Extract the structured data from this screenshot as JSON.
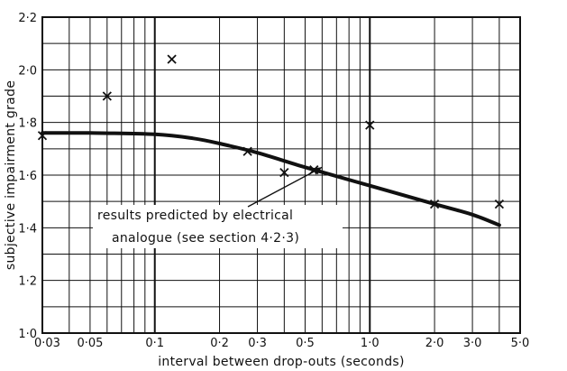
{
  "chart_data": {
    "type": "scatter",
    "xlabel": "interval between drop-outs (seconds)",
    "ylabel": "subjective impairment grade",
    "x_scale": "log",
    "xlim": [
      0.03,
      5.0
    ],
    "ylim": [
      1.0,
      2.2
    ],
    "grid": true,
    "x_ticks": [
      {
        "value": 0.03,
        "label": "0·03"
      },
      {
        "value": 0.05,
        "label": "0·05"
      },
      {
        "value": 0.1,
        "label": "0·1"
      },
      {
        "value": 0.2,
        "label": "0·2"
      },
      {
        "value": 0.3,
        "label": "0·3"
      },
      {
        "value": 0.5,
        "label": "0·5"
      },
      {
        "value": 1.0,
        "label": "1·0"
      },
      {
        "value": 2.0,
        "label": "2·0"
      },
      {
        "value": 3.0,
        "label": "3·0"
      },
      {
        "value": 5.0,
        "label": "5·0"
      }
    ],
    "y_ticks": [
      {
        "value": 1.0,
        "label": "1·0"
      },
      {
        "value": 1.2,
        "label": "1·2"
      },
      {
        "value": 1.4,
        "label": "1·4"
      },
      {
        "value": 1.6,
        "label": "1·6"
      },
      {
        "value": 1.8,
        "label": "1·8"
      },
      {
        "value": 2.0,
        "label": "2·0"
      },
      {
        "value": 2.2,
        "label": "2·2"
      }
    ],
    "measured_points": [
      {
        "x": 0.03,
        "y": 1.75
      },
      {
        "x": 0.06,
        "y": 1.9
      },
      {
        "x": 0.12,
        "y": 2.04
      },
      {
        "x": 0.27,
        "y": 1.69
      },
      {
        "x": 0.4,
        "y": 1.61
      },
      {
        "x": 0.55,
        "y": 1.62
      },
      {
        "x": 1.0,
        "y": 1.79
      },
      {
        "x": 2.0,
        "y": 1.49
      },
      {
        "x": 4.0,
        "y": 1.49
      }
    ],
    "predicted_curve": [
      {
        "x": 0.03,
        "y": 1.76
      },
      {
        "x": 0.05,
        "y": 1.76
      },
      {
        "x": 0.1,
        "y": 1.755
      },
      {
        "x": 0.15,
        "y": 1.74
      },
      {
        "x": 0.2,
        "y": 1.72
      },
      {
        "x": 0.3,
        "y": 1.685
      },
      {
        "x": 0.5,
        "y": 1.63
      },
      {
        "x": 1.0,
        "y": 1.56
      },
      {
        "x": 2.0,
        "y": 1.49
      },
      {
        "x": 3.0,
        "y": 1.45
      },
      {
        "x": 4.0,
        "y": 1.41
      }
    ],
    "annotation": {
      "lines": [
        "results predicted by electrical",
        "analogue (see section 4·2·3)"
      ],
      "arrow_to": {
        "x": 0.6,
        "y": 1.63
      }
    }
  }
}
